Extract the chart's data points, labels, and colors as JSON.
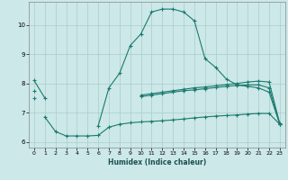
{
  "xlabel": "Humidex (Indice chaleur)",
  "bg_color": "#cce8e8",
  "line_color": "#1a7a6e",
  "grid_color": "#aacccc",
  "xlim": [
    -0.5,
    23.5
  ],
  "ylim": [
    5.8,
    10.8
  ],
  "xticks": [
    0,
    1,
    2,
    3,
    4,
    5,
    6,
    7,
    8,
    9,
    10,
    11,
    12,
    13,
    14,
    15,
    16,
    17,
    18,
    19,
    20,
    21,
    22,
    23
  ],
  "yticks": [
    6,
    7,
    8,
    9,
    10
  ],
  "line1_x": [
    0,
    1,
    2,
    3,
    4,
    5,
    6,
    7,
    8,
    9,
    10,
    11,
    12,
    13,
    14,
    15,
    16,
    17,
    18,
    19,
    20,
    21,
    22,
    23
  ],
  "line1_y": [
    8.1,
    7.5,
    null,
    null,
    null,
    null,
    6.55,
    7.85,
    8.35,
    9.3,
    9.7,
    10.45,
    10.55,
    10.55,
    10.45,
    10.15,
    8.85,
    8.55,
    8.15,
    7.95,
    7.9,
    7.85,
    7.7,
    6.6
  ],
  "line2_x": [
    0,
    1,
    2,
    3,
    4,
    5,
    6,
    7,
    8,
    9,
    10,
    11,
    12,
    13,
    14,
    15,
    16,
    17,
    18,
    19,
    20,
    21,
    22,
    23
  ],
  "line2_y": [
    7.75,
    null,
    null,
    null,
    null,
    null,
    null,
    null,
    null,
    null,
    7.6,
    7.65,
    7.7,
    7.75,
    7.8,
    7.85,
    7.88,
    7.92,
    7.96,
    8.0,
    8.05,
    8.08,
    8.05,
    6.62
  ],
  "line3_x": [
    0,
    1,
    2,
    3,
    4,
    5,
    6,
    7,
    8,
    9,
    10,
    11,
    12,
    13,
    14,
    15,
    16,
    17,
    18,
    19,
    20,
    21,
    22,
    23
  ],
  "line3_y": [
    7.5,
    null,
    null,
    null,
    null,
    null,
    null,
    null,
    null,
    null,
    7.55,
    7.6,
    7.65,
    7.7,
    7.75,
    7.78,
    7.82,
    7.86,
    7.9,
    7.93,
    7.95,
    7.95,
    7.85,
    6.6
  ],
  "line4_x": [
    1,
    2,
    3,
    4,
    5,
    6,
    7,
    8,
    9,
    10,
    11,
    12,
    13,
    14,
    15,
    16,
    17,
    18,
    19,
    20,
    21,
    22,
    23
  ],
  "line4_y": [
    6.85,
    6.35,
    6.2,
    6.2,
    6.2,
    6.22,
    6.5,
    6.6,
    6.65,
    6.68,
    6.7,
    6.72,
    6.75,
    6.78,
    6.82,
    6.85,
    6.88,
    6.9,
    6.92,
    6.95,
    6.97,
    6.97,
    6.6
  ]
}
